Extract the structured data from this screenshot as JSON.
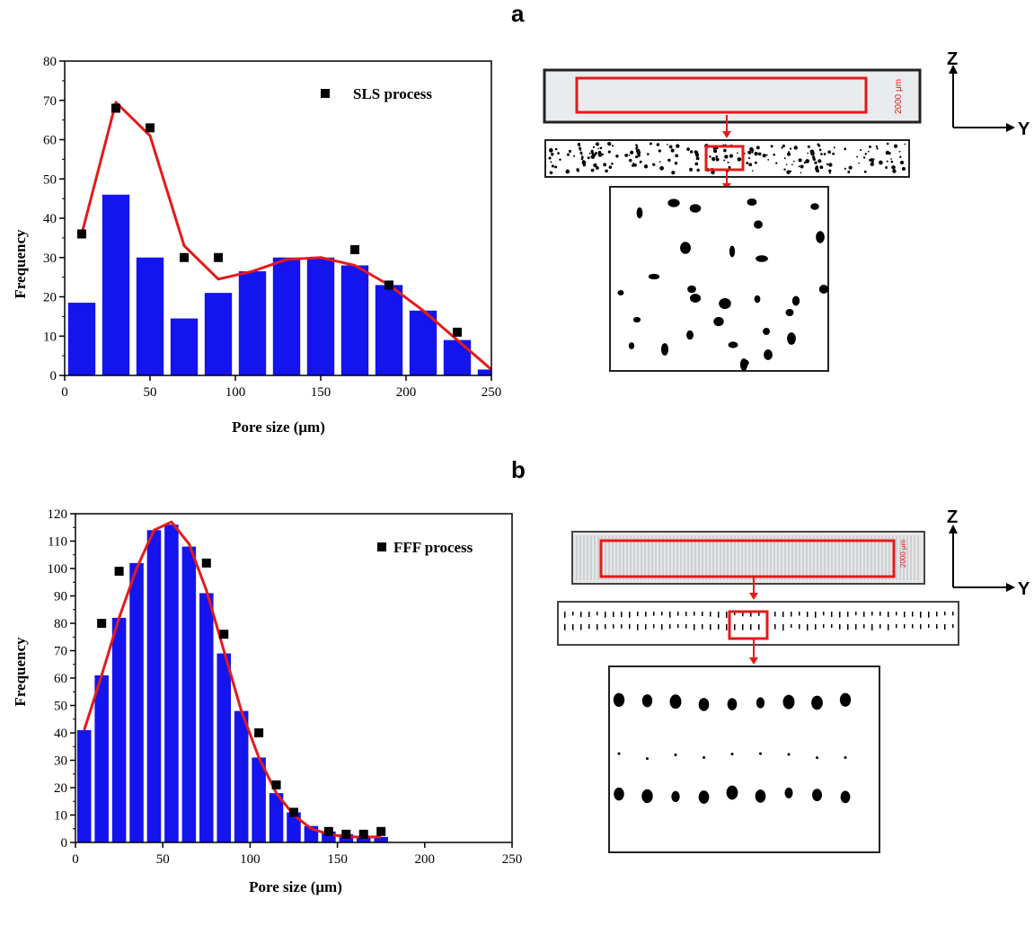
{
  "panels": {
    "a": {
      "label": "a",
      "axis_z": "Z",
      "axis_y": "Y",
      "scale_bar": "2000 μm"
    },
    "b": {
      "label": "b",
      "axis_z": "Z",
      "axis_y": "Y",
      "scale_bar": "2000 μm"
    }
  },
  "colors": {
    "bar": "#1414ee",
    "line": "#e51a1a",
    "marker": "#000000",
    "highlight": "#e51a1a"
  },
  "chart_data": [
    {
      "type": "bar",
      "xlabel": "Pore size (μm)",
      "ylabel": "Frequency",
      "xlim": [
        0,
        250
      ],
      "ylim": [
        0,
        80
      ],
      "xticks": [
        0,
        50,
        100,
        150,
        200,
        250
      ],
      "yticks": [
        0,
        10,
        20,
        30,
        40,
        50,
        60,
        70,
        80
      ],
      "legend_position": "top-right",
      "bar_width": 16,
      "bars": {
        "x": [
          10,
          30,
          50,
          70,
          90,
          110,
          130,
          150,
          170,
          190,
          210,
          230,
          250
        ],
        "values": [
          18.5,
          46,
          30,
          14.5,
          21,
          26.5,
          30,
          30,
          28,
          23,
          16.5,
          9,
          1.5
        ]
      },
      "scatter": {
        "name": "SLS process",
        "x": [
          10,
          30,
          50,
          70,
          90,
          170,
          190,
          230
        ],
        "y": [
          36,
          68,
          63,
          30,
          30,
          32,
          23,
          11
        ]
      },
      "line": {
        "x": [
          10,
          30,
          50,
          70,
          90,
          110,
          130,
          150,
          170,
          190,
          210,
          230,
          250
        ],
        "y": [
          36,
          69.5,
          61,
          33,
          24.5,
          26.5,
          29.5,
          30,
          28,
          23,
          16.5,
          9,
          1.5
        ]
      }
    },
    {
      "type": "bar",
      "xlabel": "Pore size (μm)",
      "ylabel": "Frequency",
      "xlim": [
        0,
        250
      ],
      "ylim": [
        0,
        120
      ],
      "xticks": [
        0,
        50,
        100,
        150,
        200,
        250
      ],
      "yticks": [
        0,
        10,
        20,
        30,
        40,
        50,
        60,
        70,
        80,
        90,
        100,
        110,
        120
      ],
      "legend_position": "top-right",
      "bar_width": 8,
      "bars": {
        "x": [
          5,
          15,
          25,
          35,
          45,
          55,
          65,
          75,
          85,
          95,
          105,
          115,
          125,
          135,
          145,
          155,
          165,
          175
        ],
        "values": [
          41,
          61,
          82,
          102,
          114,
          116,
          108,
          91,
          69,
          48,
          31,
          18,
          11,
          6,
          4,
          3,
          2,
          2
        ]
      },
      "scatter": {
        "name": "FFF process",
        "x": [
          15,
          25,
          75,
          85,
          105,
          115,
          125,
          145,
          155,
          165,
          175
        ],
        "y": [
          80,
          99,
          102,
          76,
          40,
          21,
          11,
          4,
          3,
          3,
          4
        ]
      },
      "line": {
        "x": [
          5,
          15,
          25,
          35,
          45,
          55,
          65,
          75,
          85,
          95,
          105,
          115,
          125,
          135,
          145,
          155,
          165,
          175
        ],
        "y": [
          41,
          61,
          82,
          100,
          114,
          117,
          109,
          92,
          70,
          48,
          31,
          18,
          10,
          5,
          3,
          2,
          2,
          2
        ]
      }
    }
  ]
}
